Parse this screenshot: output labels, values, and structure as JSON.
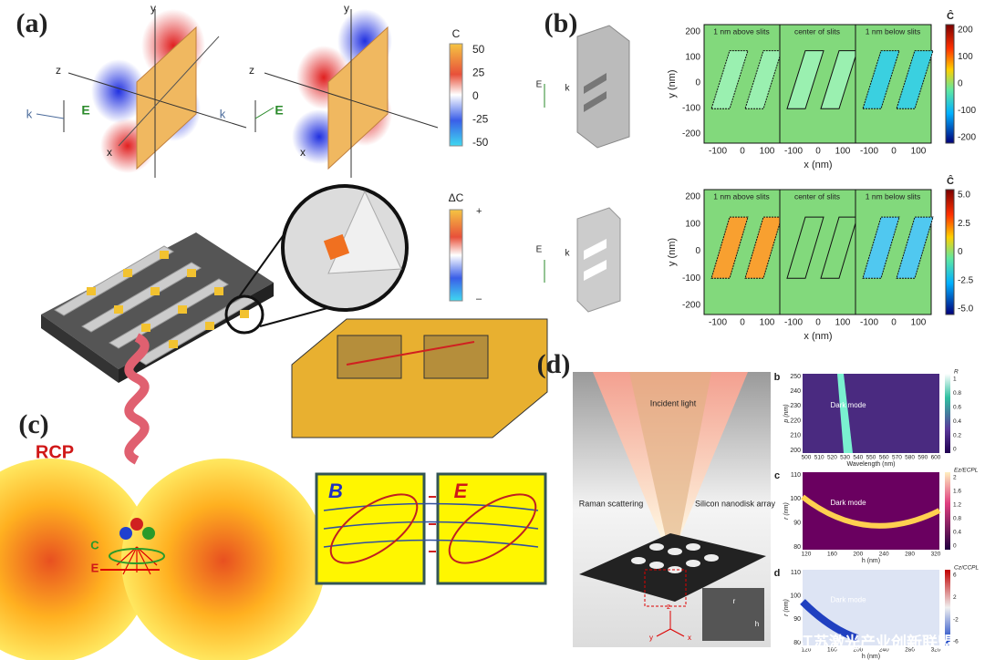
{
  "panel_a": {
    "label": "(a)",
    "left_axes": {
      "y": "y",
      "z": "z",
      "x": "x",
      "k": "k",
      "E": "E"
    },
    "right_axes": {
      "y": "y",
      "z": "z",
      "x": "x",
      "k": "k",
      "E": "E"
    },
    "colorbar_c": {
      "title": "C",
      "ticks": [
        "50",
        "25",
        "0",
        "-25",
        "-50"
      ]
    },
    "colorbar_dc": {
      "title": "ΔC",
      "ticks": [
        "+",
        "–"
      ]
    }
  },
  "panel_b": {
    "label": "(b)",
    "top": {
      "legend": {
        "E": "E",
        "k": "k"
      },
      "titles": [
        "1 nm above slits",
        "center of slits",
        "1 nm below slits"
      ],
      "y_label": "y (nm)",
      "yticks": [
        "200",
        "100",
        "0",
        "-100",
        "-200"
      ],
      "xticks": [
        [
          "-100",
          "0",
          "100"
        ],
        [
          "-100",
          "0",
          "100"
        ],
        [
          "-100",
          "0",
          "100"
        ]
      ],
      "x_label": "x (nm)",
      "colorbar": {
        "title": "Ĉ",
        "ticks": [
          "200",
          "100",
          "0",
          "-100",
          "-200"
        ]
      }
    },
    "bottom": {
      "legend": {
        "E": "E",
        "k": "k"
      },
      "titles": [
        "1 nm above slits",
        "center of slits",
        "1 nm below slits"
      ],
      "y_label": "y (nm)",
      "yticks": [
        "200",
        "100",
        "0",
        "-100",
        "-200"
      ],
      "xticks": [
        [
          "-100",
          "0",
          "100"
        ],
        [
          "-100",
          "0",
          "100"
        ],
        [
          "-100",
          "0",
          "100"
        ]
      ],
      "x_label": "x (nm)",
      "colorbar": {
        "title": "Ĉ",
        "ticks": [
          "5.0",
          "2.5",
          "0",
          "-2.5",
          "-5.0"
        ]
      }
    }
  },
  "panel_c": {
    "label": "(c)",
    "rcp": "RCP",
    "field_c": "C",
    "field_e": "E",
    "box_b": "B",
    "box_e": "E"
  },
  "panel_d": {
    "label": "(d)",
    "incident": "Incident light",
    "raman": "Raman scattering",
    "array": "Silicon nanodisk array",
    "axis_z": "z",
    "axis_y": "y",
    "axis_x": "x",
    "inset_r": "r",
    "inset_h": "h",
    "plots": [
      {
        "letter": "b",
        "annotation": "Dark mode",
        "y_label": "p (nm)",
        "x_label": "Wavelength (nm)",
        "yticks": [
          "250",
          "240",
          "230",
          "220",
          "210",
          "200"
        ],
        "xticks": [
          "500",
          "510",
          "520",
          "530",
          "540",
          "550",
          "560",
          "570",
          "580",
          "590",
          "600"
        ],
        "colorbar_label": "R",
        "colorbar_ticks": [
          "1",
          "0.8",
          "0.6",
          "0.4",
          "0.2",
          "0"
        ]
      },
      {
        "letter": "c",
        "annotation": "Dark mode",
        "y_label": "r (nm)",
        "x_label": "h (nm)",
        "yticks": [
          "110",
          "100",
          "90",
          "80"
        ],
        "xticks": [
          "120",
          "160",
          "200",
          "240",
          "280",
          "320"
        ],
        "colorbar_label": "Ez/ECPL",
        "colorbar_ticks": [
          "2",
          "1.6",
          "1.2",
          "0.8",
          "0.4",
          "0"
        ]
      },
      {
        "letter": "d",
        "annotation": "Dark mode",
        "y_label": "r (nm)",
        "x_label": "h (nm)",
        "yticks": [
          "110",
          "100",
          "90",
          "80"
        ],
        "xticks": [
          "120",
          "160",
          "200",
          "240",
          "280",
          "320"
        ],
        "colorbar_label": "Cz/CCPL",
        "colorbar_ticks": [
          "6",
          "2",
          "-2",
          "-6"
        ]
      }
    ]
  },
  "watermark": "江苏激光产业创新联盟"
}
